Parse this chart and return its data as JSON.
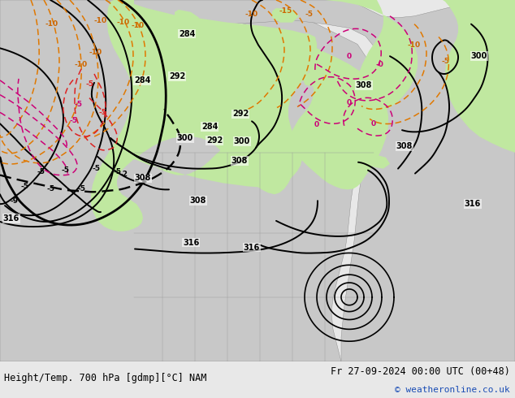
{
  "title_left": "Height/Temp. 700 hPa [gdmp][°C] NAM",
  "title_right": "Fr 27-09-2024 00:00 UTC (00+48)",
  "copyright": "© weatheronline.co.uk",
  "bg_color": "#e8e8e8",
  "map_bg": "#d8d8d8",
  "green_fill": "#c8e8b0",
  "land_color": "#d0d0d0",
  "figsize": [
    6.34,
    4.9
  ],
  "dpi": 100,
  "text_color": "#000000",
  "title_fontsize": 8.5,
  "copyright_color": "#1a4db5",
  "copyright_fontsize": 8,
  "black_lw": 1.4,
  "dashed_lw": 1.1
}
